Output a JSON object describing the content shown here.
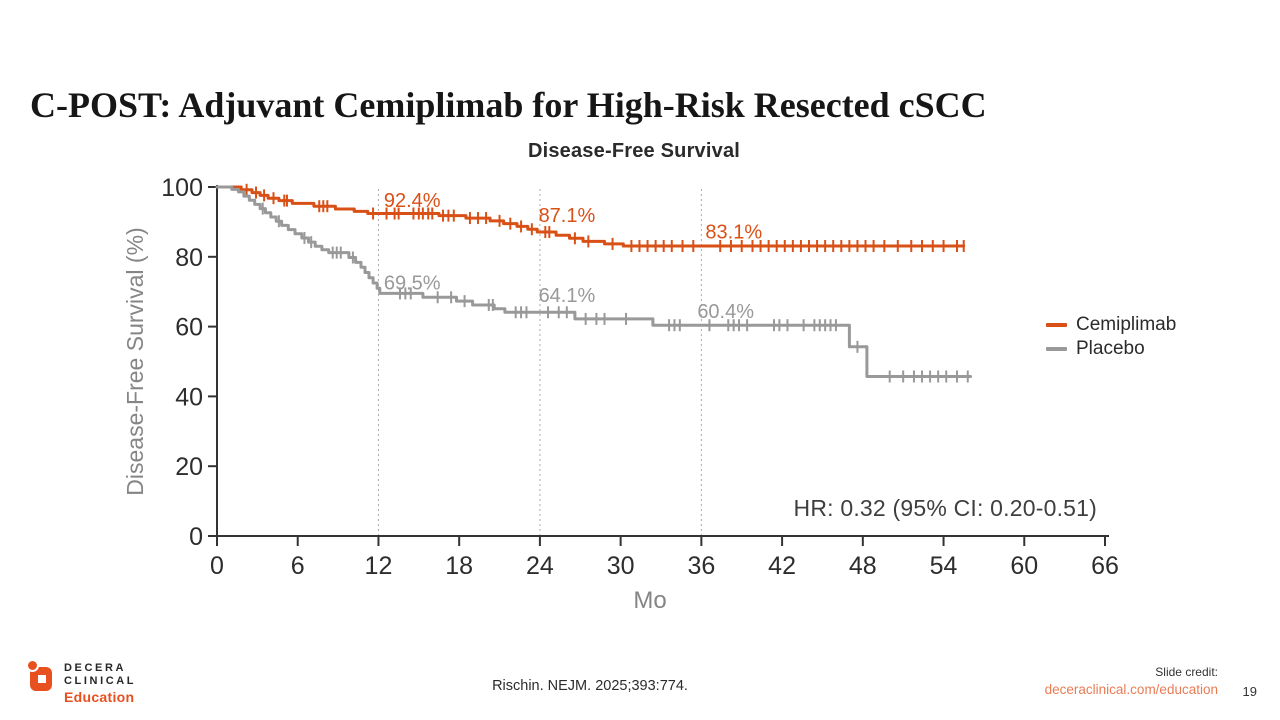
{
  "slide": {
    "title": "C-POST: Adjuvant Cemiplimab for High-Risk Resected cSCC"
  },
  "chart_data": {
    "type": "line",
    "subtype": "kaplan-meier-step",
    "title": "Disease-Free Survival",
    "xlabel": "Mo",
    "ylabel": "Disease-Free Survival (%)",
    "xlim": [
      0,
      66
    ],
    "ylim": [
      0,
      100
    ],
    "x_ticks": [
      0,
      6,
      12,
      18,
      24,
      30,
      36,
      42,
      48,
      54,
      60,
      66
    ],
    "y_ticks": [
      0,
      20,
      40,
      60,
      80,
      100
    ],
    "gridlines_x": [
      12,
      24,
      36
    ],
    "grid": "dotted vertical lines at 12, 24, 36 months",
    "legend_position": "right",
    "hr_text": "HR: 0.32 (95% CI: 0.20-0.51)",
    "axis_color": "#333333",
    "grid_color": "#ababab",
    "tick_label_color": "#2d2d2d",
    "axis_title_color": "#858585",
    "series": [
      {
        "name": "Cemiplimab",
        "color": "#D95017",
        "landmarks": [
          {
            "mo": 12,
            "value": "92.4%"
          },
          {
            "mo": 24,
            "value": "87.1%"
          },
          {
            "mo": 36,
            "value": "83.1%"
          }
        ],
        "steps": [
          [
            0,
            100
          ],
          [
            1.8,
            100
          ],
          [
            1.8,
            99.2
          ],
          [
            2.6,
            99.2
          ],
          [
            2.6,
            98.4
          ],
          [
            3.2,
            98.4
          ],
          [
            3.2,
            97.6
          ],
          [
            3.8,
            97.6
          ],
          [
            3.8,
            96.8
          ],
          [
            4.6,
            96.8
          ],
          [
            4.6,
            96.1
          ],
          [
            5.6,
            96.1
          ],
          [
            5.6,
            95.3
          ],
          [
            7.2,
            95.3
          ],
          [
            7.2,
            94.5
          ],
          [
            8.8,
            94.5
          ],
          [
            8.8,
            93.7
          ],
          [
            10.2,
            93.7
          ],
          [
            10.2,
            93.0
          ],
          [
            11.2,
            93.0
          ],
          [
            11.2,
            92.4
          ],
          [
            16.5,
            92.4
          ],
          [
            16.5,
            91.8
          ],
          [
            18.5,
            91.8
          ],
          [
            18.5,
            91.1
          ],
          [
            20.3,
            91.1
          ],
          [
            20.3,
            90.3
          ],
          [
            21.3,
            90.3
          ],
          [
            21.3,
            89.5
          ],
          [
            22.3,
            89.5
          ],
          [
            22.3,
            88.7
          ],
          [
            23.1,
            88.7
          ],
          [
            23.1,
            87.9
          ],
          [
            23.8,
            87.9
          ],
          [
            23.8,
            87.1
          ],
          [
            25.2,
            87.1
          ],
          [
            25.2,
            86.2
          ],
          [
            26.2,
            86.2
          ],
          [
            26.2,
            85.3
          ],
          [
            27.2,
            85.3
          ],
          [
            27.2,
            84.4
          ],
          [
            28.8,
            84.4
          ],
          [
            28.8,
            83.7
          ],
          [
            30.2,
            83.7
          ],
          [
            30.2,
            83.1
          ],
          [
            55.5,
            83.1
          ]
        ],
        "censor_ticks": [
          2.2,
          2.9,
          3.5,
          4.2,
          5.0,
          5.2,
          7.6,
          7.9,
          8.2,
          11.6,
          12.6,
          13.2,
          13.5,
          14.6,
          15.0,
          15.3,
          15.7,
          16.0,
          16.8,
          17.2,
          17.6,
          18.8,
          19.4,
          20.0,
          21.0,
          21.8,
          22.6,
          23.4,
          24.4,
          24.7,
          26.6,
          27.6,
          29.4,
          30.8,
          31.4,
          32.0,
          32.6,
          33.2,
          33.8,
          34.6,
          35.4,
          37.4,
          38.2,
          39.0,
          39.8,
          40.4,
          41.0,
          41.6,
          42.2,
          42.8,
          43.4,
          44.0,
          44.6,
          45.2,
          45.8,
          46.4,
          47.0,
          47.6,
          48.2,
          48.8,
          49.6,
          50.6,
          51.6,
          52.4,
          53.2,
          54.0,
          55.0,
          55.5
        ]
      },
      {
        "name": "Placebo",
        "color": "#999999",
        "landmarks": [
          {
            "mo": 12,
            "value": "69.5%"
          },
          {
            "mo": 24,
            "value": "64.1%"
          },
          {
            "mo": 36,
            "value": "60.4%"
          }
        ],
        "steps": [
          [
            0,
            100
          ],
          [
            1.1,
            100
          ],
          [
            1.1,
            99.3
          ],
          [
            1.6,
            99.3
          ],
          [
            1.6,
            98.6
          ],
          [
            2.0,
            98.6
          ],
          [
            2.0,
            97.4
          ],
          [
            2.4,
            97.4
          ],
          [
            2.4,
            96.2
          ],
          [
            2.8,
            96.2
          ],
          [
            2.8,
            95.0
          ],
          [
            3.2,
            95.0
          ],
          [
            3.2,
            93.8
          ],
          [
            3.6,
            93.8
          ],
          [
            3.6,
            92.6
          ],
          [
            4.0,
            92.6
          ],
          [
            4.0,
            91.4
          ],
          [
            4.4,
            91.4
          ],
          [
            4.4,
            90.2
          ],
          [
            4.8,
            90.2
          ],
          [
            4.8,
            89.0
          ],
          [
            5.3,
            89.0
          ],
          [
            5.3,
            87.8
          ],
          [
            5.8,
            87.8
          ],
          [
            5.8,
            86.6
          ],
          [
            6.3,
            86.6
          ],
          [
            6.3,
            85.4
          ],
          [
            6.8,
            85.4
          ],
          [
            6.8,
            84.2
          ],
          [
            7.3,
            84.2
          ],
          [
            7.3,
            83.0
          ],
          [
            7.8,
            83.0
          ],
          [
            7.8,
            82.0
          ],
          [
            8.3,
            82.0
          ],
          [
            8.3,
            81.2
          ],
          [
            9.8,
            81.2
          ],
          [
            9.8,
            79.8
          ],
          [
            10.3,
            79.8
          ],
          [
            10.3,
            78.4
          ],
          [
            10.7,
            78.4
          ],
          [
            10.7,
            77.0
          ],
          [
            11.0,
            77.0
          ],
          [
            11.0,
            75.5
          ],
          [
            11.3,
            75.5
          ],
          [
            11.3,
            74.0
          ],
          [
            11.6,
            74.0
          ],
          [
            11.6,
            72.5
          ],
          [
            11.9,
            72.5
          ],
          [
            11.9,
            71.0
          ],
          [
            12.1,
            71.0
          ],
          [
            12.1,
            69.5
          ],
          [
            15.3,
            69.5
          ],
          [
            15.3,
            68.4
          ],
          [
            17.8,
            68.4
          ],
          [
            17.8,
            67.3
          ],
          [
            19.0,
            67.3
          ],
          [
            19.0,
            66.2
          ],
          [
            20.6,
            66.2
          ],
          [
            20.6,
            65.1
          ],
          [
            21.4,
            65.1
          ],
          [
            21.4,
            64.1
          ],
          [
            26.6,
            64.1
          ],
          [
            26.6,
            62.2
          ],
          [
            32.4,
            62.2
          ],
          [
            32.4,
            60.4
          ],
          [
            47.0,
            60.4
          ],
          [
            47.0,
            54.2
          ],
          [
            48.3,
            54.2
          ],
          [
            48.3,
            45.7
          ],
          [
            56.0,
            45.7
          ]
        ],
        "censor_ticks": [
          3.4,
          4.6,
          6.5,
          7.0,
          8.6,
          8.9,
          9.2,
          10.1,
          13.6,
          14.0,
          14.4,
          16.4,
          17.4,
          18.4,
          20.2,
          20.5,
          22.2,
          22.6,
          23.0,
          24.6,
          25.4,
          26.0,
          27.4,
          28.2,
          28.8,
          30.4,
          33.6,
          34.0,
          34.4,
          36.6,
          38.0,
          38.4,
          38.8,
          39.4,
          41.4,
          41.8,
          42.4,
          43.6,
          44.4,
          44.8,
          45.2,
          45.6,
          46.0,
          47.6,
          50.0,
          51.0,
          51.8,
          52.4,
          53.0,
          53.6,
          54.2,
          55.0,
          55.8
        ]
      }
    ],
    "annotations": [
      {
        "text": "92.4%",
        "series": 0,
        "mo": 12.4,
        "pct": 94.3
      },
      {
        "text": "87.1%",
        "series": 0,
        "mo": 23.9,
        "pct": 90.0
      },
      {
        "text": "83.1%",
        "series": 0,
        "mo": 36.3,
        "pct": 85.3
      },
      {
        "text": "69.5%",
        "series": 1,
        "mo": 12.4,
        "pct": 70.6
      },
      {
        "text": "64.1%",
        "series": 1,
        "mo": 23.9,
        "pct": 67.0
      },
      {
        "text": "60.4%",
        "series": 1,
        "mo": 35.7,
        "pct": 62.4
      }
    ]
  },
  "footer": {
    "logo": {
      "line1": "DECERA",
      "line2": "CLINICAL",
      "line3": "Education",
      "accent_color": "#E8511F"
    },
    "citation": "Rischin. NEJM. 2025;393:774.",
    "credit_label": "Slide credit:",
    "credit_link": "deceraclinical.com/education",
    "credit_link_color": "#E97C55",
    "page_number": "19"
  }
}
